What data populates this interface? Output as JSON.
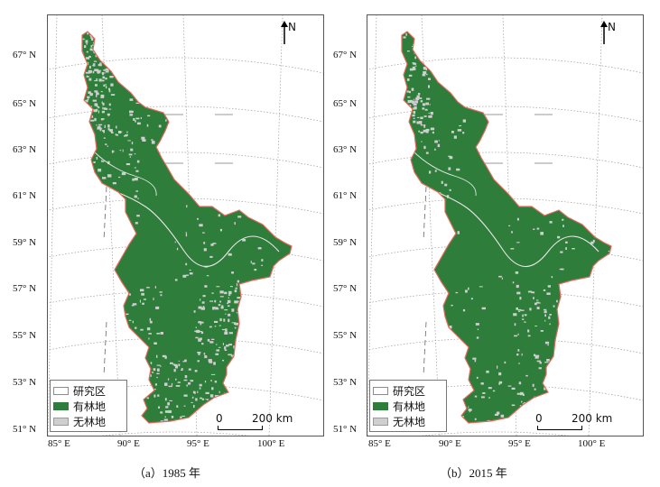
{
  "panels": [
    {
      "id": "a",
      "caption": "（a）1985 年",
      "north_label": "N",
      "scale": {
        "zero": "0",
        "label": "200 km"
      },
      "legend": [
        {
          "label": "研究区",
          "color": "#e06a5c"
        },
        {
          "label": "有林地",
          "color": "#2e7d3a"
        },
        {
          "label": "无林地",
          "color": "#cfcfcf"
        }
      ]
    },
    {
      "id": "b",
      "caption": "（b）2015 年",
      "north_label": "N",
      "scale": {
        "zero": "0",
        "label": "200 km"
      },
      "legend": [
        {
          "label": "研究区",
          "color": "#e06a5c"
        },
        {
          "label": "有林地",
          "color": "#2e7d3a"
        },
        {
          "label": "无林地",
          "color": "#cfcfcf"
        }
      ]
    }
  ],
  "lat_labels": [
    "67° N",
    "65° N",
    "63° N",
    "61° N",
    "59° N",
    "57° N",
    "55° N",
    "53° N",
    "51° N"
  ],
  "lon_labels": [
    "85° E",
    "90° E",
    "95° E",
    "100° E"
  ],
  "colors": {
    "forest": "#2e7d3a",
    "non_forest": "#cfcfcf",
    "study_boundary": "#e06a5c",
    "graticule": "#9a9a9a"
  }
}
